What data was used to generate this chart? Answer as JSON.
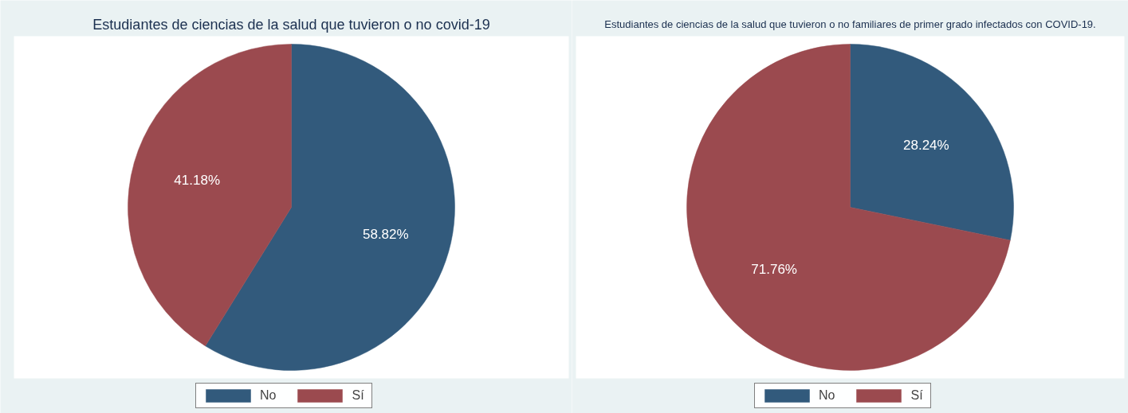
{
  "chart_data": [
    {
      "type": "pie",
      "title": "Estudiantes de ciencias de la salud que tuvieron o no covid-19",
      "categories": [
        "No",
        "Sí"
      ],
      "values": [
        58.82,
        41.18
      ],
      "colors": [
        "#325a7c",
        "#9b4a4f"
      ],
      "value_labels": [
        "58.82%",
        "41.18%"
      ],
      "legend": "bottom"
    },
    {
      "type": "pie",
      "title": "Estudiantes de ciencias de la salud que tuvieron o no familiares de primer grado infectados con COVID-19.",
      "categories": [
        "No",
        "Sí"
      ],
      "values": [
        28.24,
        71.76
      ],
      "colors": [
        "#325a7c",
        "#9b4a4f"
      ],
      "value_labels": [
        "28.24%",
        "71.76%"
      ],
      "legend": "bottom"
    }
  ]
}
